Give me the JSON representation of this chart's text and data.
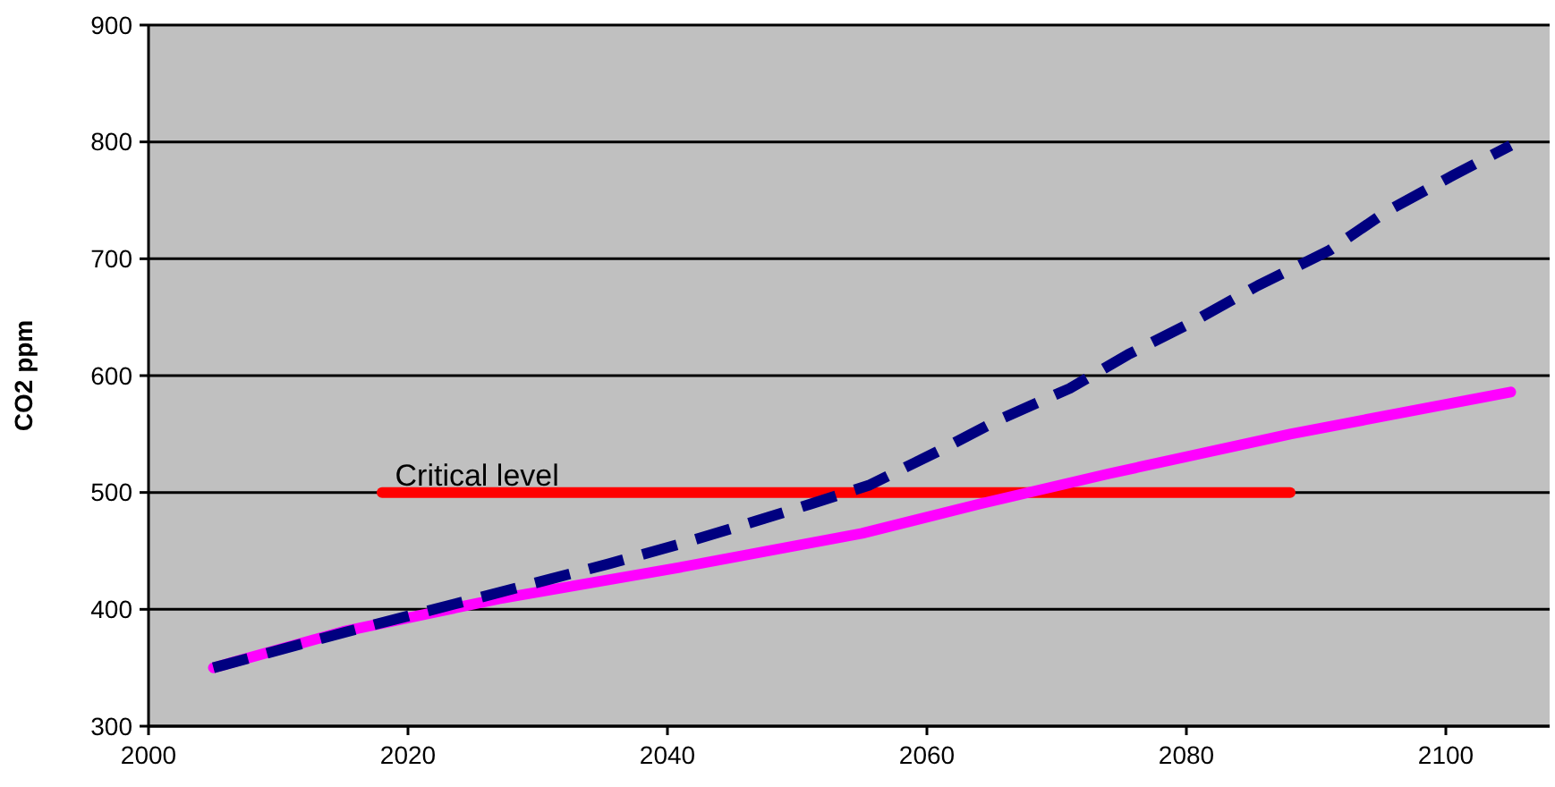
{
  "chart_data": {
    "type": "line",
    "ylabel": "CO2 ppm",
    "xlim": [
      2000,
      2108
    ],
    "xticks": [
      2000,
      2020,
      2040,
      2060,
      2080,
      2100
    ],
    "ylim": [
      300,
      900
    ],
    "yticks": [
      300,
      400,
      500,
      600,
      700,
      800,
      900
    ],
    "grid": "y",
    "series": [
      {
        "color": "#000080",
        "line_style": "dashed",
        "x": [
          2005,
          2015,
          2025.5,
          2031,
          2035.5,
          2041,
          2045.5,
          2051,
          2055.5,
          2061,
          2065.5,
          2071,
          2075.5,
          2080.5,
          2085.5,
          2091,
          2095.5,
          2100.5,
          2105
        ],
        "values": [
          350,
          380,
          410,
          426,
          439,
          456,
          471,
          490,
          506,
          536,
          562,
          589,
          618,
          646,
          677,
          707,
          741,
          771,
          797
        ]
      },
      {
        "color": "#ff00ff",
        "line_style": "solid",
        "x": [
          2005,
          2015,
          2027,
          2041,
          2055,
          2064,
          2074,
          2088,
          2105
        ],
        "values": [
          350,
          381,
          409,
          436,
          465,
          490,
          516,
          550,
          586
        ]
      },
      {
        "color": "#ff0000",
        "line_style": "solid",
        "x": [
          2018,
          2088
        ],
        "values": [
          500,
          500
        ]
      }
    ],
    "annotations": [
      {
        "text": "Critical level",
        "x": 2019,
        "y": 500
      }
    ]
  }
}
